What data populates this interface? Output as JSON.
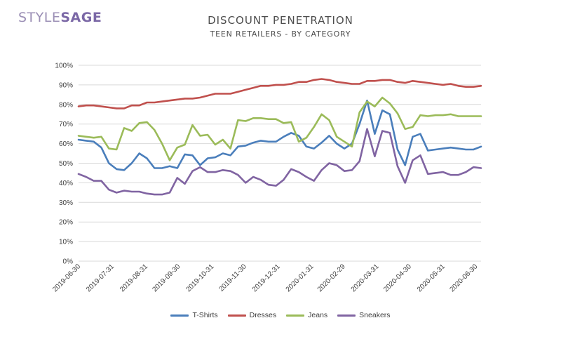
{
  "logo": {
    "part1": "STYLE",
    "part2": "SAGE"
  },
  "chart_data": {
    "type": "line",
    "title": "DISCOUNT PENETRATION",
    "subtitle": "TEEN RETAILERS - BY CATEGORY",
    "ylim": [
      0,
      100
    ],
    "y_ticks": [
      "0%",
      "10%",
      "20%",
      "30%",
      "40%",
      "50%",
      "60%",
      "70%",
      "80%",
      "90%",
      "100%"
    ],
    "x_ticks": [
      "2019-06-30",
      "2019-07-31",
      "2019-08-31",
      "2019-09-30",
      "2019-10-31",
      "2019-11-30",
      "2019-12-31",
      "2020-01-31",
      "2020-02-29",
      "2020-03-31",
      "2020-04-30",
      "2020-05-31",
      "2020-06-30"
    ],
    "x_tick_weeks": [
      0,
      4.43,
      8.86,
      13.14,
      17.57,
      21.86,
      26.29,
      30.71,
      34.86,
      39.29,
      43.57,
      48,
      52.29
    ],
    "grid": true,
    "legend_position": "bottom",
    "series": [
      {
        "name": "T-Shirts",
        "color": "#4a7ebb",
        "values": [
          62,
          61.5,
          61,
          58,
          50,
          47,
          46.5,
          50,
          55,
          52.5,
          47.5,
          47.5,
          48.5,
          47.5,
          54.5,
          54,
          49,
          52.5,
          53,
          55,
          54,
          58.5,
          59,
          60.5,
          61.5,
          61,
          61,
          63.5,
          65.5,
          64,
          58.5,
          57.5,
          60.5,
          64,
          60,
          57.5,
          60,
          70,
          82,
          65,
          77,
          75,
          57,
          49,
          63.5,
          65,
          56.5,
          57,
          57.5,
          58,
          57.5,
          57,
          57,
          58.5
        ]
      },
      {
        "name": "Dresses",
        "color": "#c0504d",
        "values": [
          79,
          79.5,
          79.5,
          79,
          78.5,
          78,
          78,
          79.5,
          79.5,
          81,
          81,
          81.5,
          82,
          82.5,
          83,
          83,
          83.5,
          84.5,
          85.5,
          85.5,
          85.5,
          86.5,
          87.5,
          88.5,
          89.5,
          89.5,
          90,
          90,
          90.5,
          91.5,
          91.5,
          92.5,
          93,
          92.5,
          91.5,
          91,
          90.5,
          90.5,
          92,
          92,
          92.5,
          92.5,
          91.5,
          91,
          92,
          91.5,
          91,
          90.5,
          90,
          90.5,
          89.5,
          89,
          89,
          89.5
        ]
      },
      {
        "name": "Jeans",
        "color": "#9bbb59",
        "values": [
          64,
          63.5,
          63,
          63.5,
          57.5,
          57,
          68,
          66.5,
          70.5,
          71,
          67,
          60,
          51.5,
          58,
          59.5,
          69.5,
          64,
          64.5,
          59.5,
          62,
          57.5,
          72,
          71.5,
          73,
          73,
          72.5,
          72.5,
          70.5,
          71,
          61,
          63,
          68.5,
          75,
          72,
          63.5,
          61,
          58.5,
          76,
          81.5,
          79,
          83.5,
          80.5,
          75.5,
          67.5,
          68.5,
          74.5,
          74,
          74.5,
          74.5,
          75,
          74,
          74,
          74,
          74
        ]
      },
      {
        "name": "Sneakers",
        "color": "#8064a2",
        "values": [
          44.5,
          43,
          41,
          41,
          36.5,
          35,
          36,
          35.5,
          35.5,
          34.5,
          34,
          34,
          35,
          42.5,
          39.5,
          46,
          48,
          45.5,
          45.5,
          46.5,
          46,
          44,
          40,
          43,
          41.5,
          39,
          38.5,
          41.5,
          47,
          45.5,
          43,
          41,
          46.5,
          50,
          49,
          46,
          46.5,
          51,
          67.5,
          53.5,
          66.5,
          65.5,
          48.5,
          40,
          51.5,
          54,
          44.5,
          45,
          45.5,
          44,
          44,
          45.5,
          48,
          47.5
        ]
      }
    ]
  }
}
